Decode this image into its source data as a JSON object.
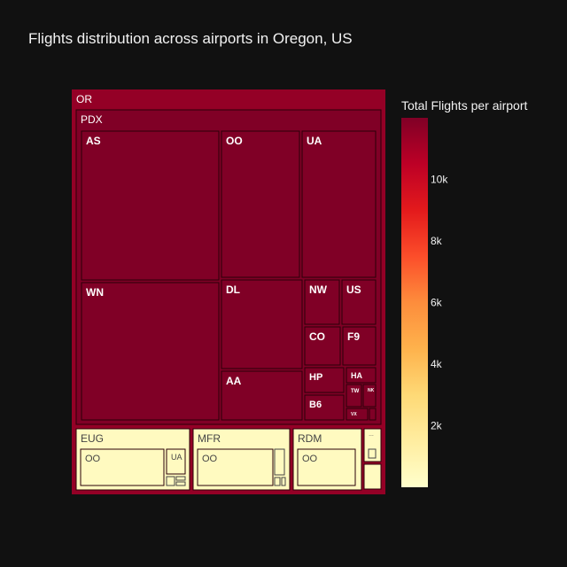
{
  "title": "Flights distribution across airports in Oregon, US",
  "colorbar": {
    "title": "Total Flights per airport",
    "ticks": [
      {
        "label": "2k",
        "value": 2000
      },
      {
        "label": "4k",
        "value": 4000
      },
      {
        "label": "6k",
        "value": 6000
      },
      {
        "label": "8k",
        "value": 8000
      },
      {
        "label": "10k",
        "value": 10000
      }
    ],
    "colors": [
      "#ffffcc",
      "#ffeda0",
      "#fed976",
      "#feb24c",
      "#fd8d3c",
      "#fc4e2a",
      "#e31a1c",
      "#bd0026",
      "#800026"
    ]
  },
  "chart_data": {
    "type": "treemap",
    "root": "OR",
    "color_scale": "YlOrRd",
    "color_range": [
      0,
      12000
    ],
    "nodes": [
      {
        "id": "OR",
        "label": "OR",
        "parent": "",
        "value": 11500
      },
      {
        "id": "PDX",
        "label": "PDX",
        "parent": "OR",
        "value": 12000
      },
      {
        "id": "PDX/AS",
        "label": "AS",
        "parent": "PDX",
        "value": 12000
      },
      {
        "id": "PDX/OO",
        "label": "OO",
        "parent": "PDX",
        "value": 12000
      },
      {
        "id": "PDX/UA",
        "label": "UA",
        "parent": "PDX",
        "value": 12000
      },
      {
        "id": "PDX/WN",
        "label": "WN",
        "parent": "PDX",
        "value": 12000
      },
      {
        "id": "PDX/DL",
        "label": "DL",
        "parent": "PDX",
        "value": 12000
      },
      {
        "id": "PDX/AA",
        "label": "AA",
        "parent": "PDX",
        "value": 12000
      },
      {
        "id": "PDX/NW",
        "label": "NW",
        "parent": "PDX",
        "value": 12000
      },
      {
        "id": "PDX/US",
        "label": "US",
        "parent": "PDX",
        "value": 12000
      },
      {
        "id": "PDX/CO",
        "label": "CO",
        "parent": "PDX",
        "value": 12000
      },
      {
        "id": "PDX/F9",
        "label": "F9",
        "parent": "PDX",
        "value": 12000
      },
      {
        "id": "PDX/HP",
        "label": "HP",
        "parent": "PDX",
        "value": 12000
      },
      {
        "id": "PDX/HA",
        "label": "HA",
        "parent": "PDX",
        "value": 12000
      },
      {
        "id": "PDX/TW",
        "label": "TW",
        "parent": "PDX",
        "value": 12000
      },
      {
        "id": "PDX/NK",
        "label": "NK",
        "parent": "PDX",
        "value": 12000
      },
      {
        "id": "PDX/B6",
        "label": "B6",
        "parent": "PDX",
        "value": 12000
      },
      {
        "id": "PDX/VX",
        "label": "VX",
        "parent": "PDX",
        "value": 12000
      },
      {
        "id": "PDX/small",
        "label": "",
        "parent": "PDX",
        "value": 12000
      },
      {
        "id": "EUG",
        "label": "EUG",
        "parent": "OR",
        "value": 400
      },
      {
        "id": "EUG/OO",
        "label": "OO",
        "parent": "EUG",
        "value": 400
      },
      {
        "id": "EUG/UA",
        "label": "UA",
        "parent": "EUG",
        "value": 400
      },
      {
        "id": "MFR",
        "label": "MFR",
        "parent": "OR",
        "value": 400
      },
      {
        "id": "MFR/OO",
        "label": "OO",
        "parent": "MFR",
        "value": 400
      },
      {
        "id": "RDM",
        "label": "RDM",
        "parent": "OR",
        "value": 400
      },
      {
        "id": "RDM/OO",
        "label": "OO",
        "parent": "RDM",
        "value": 400
      },
      {
        "id": "OTH1",
        "label": "",
        "parent": "OR",
        "value": 400
      },
      {
        "id": "OTH2",
        "label": "",
        "parent": "OR",
        "value": 400
      }
    ]
  }
}
